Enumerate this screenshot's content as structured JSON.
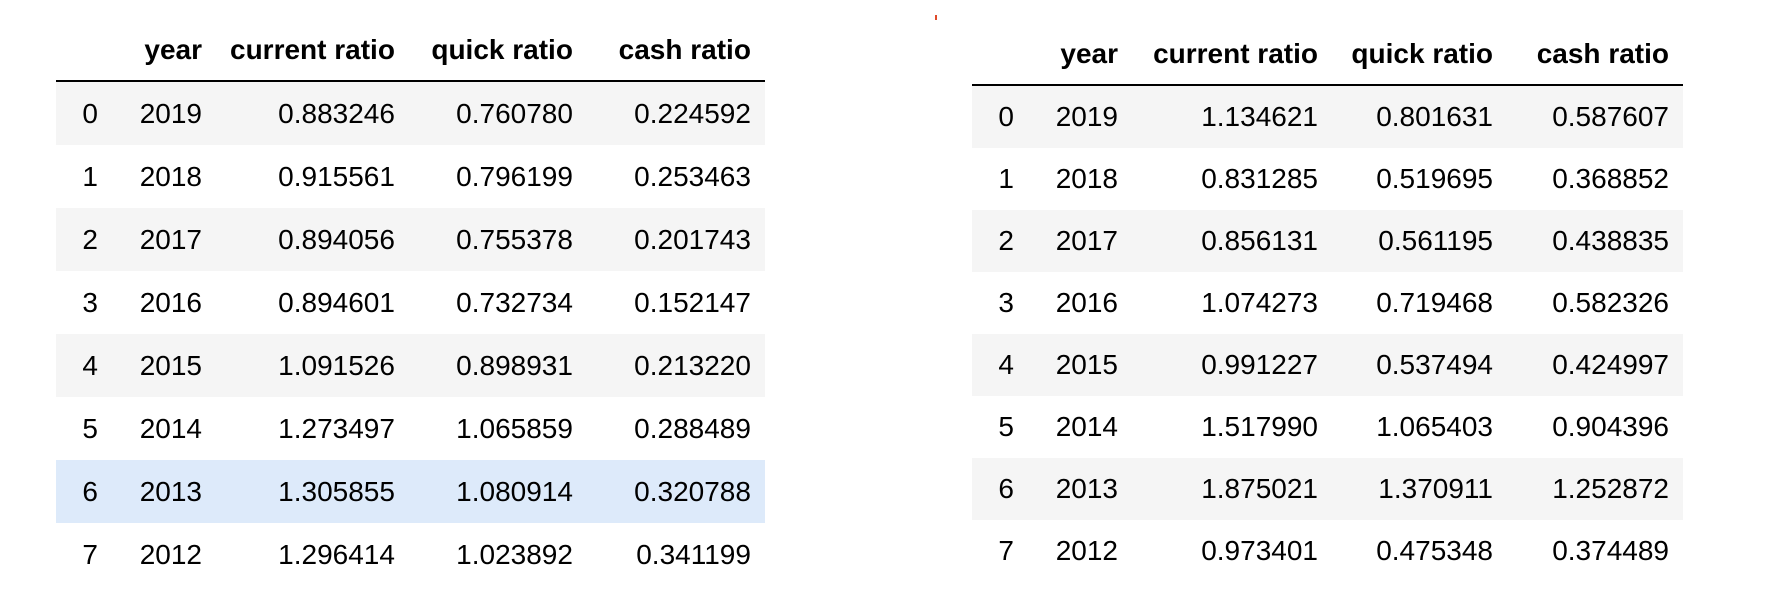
{
  "tables": [
    {
      "columns": [
        "",
        "year",
        "current ratio",
        "quick ratio",
        "cash ratio"
      ],
      "highlight_row": 6,
      "rows": [
        [
          "0",
          "2019",
          "0.883246",
          "0.760780",
          "0.224592"
        ],
        [
          "1",
          "2018",
          "0.915561",
          "0.796199",
          "0.253463"
        ],
        [
          "2",
          "2017",
          "0.894056",
          "0.755378",
          "0.201743"
        ],
        [
          "3",
          "2016",
          "0.894601",
          "0.732734",
          "0.152147"
        ],
        [
          "4",
          "2015",
          "1.091526",
          "0.898931",
          "0.213220"
        ],
        [
          "5",
          "2014",
          "1.273497",
          "1.065859",
          "0.288489"
        ],
        [
          "6",
          "2013",
          "1.305855",
          "1.080914",
          "0.320788"
        ],
        [
          "7",
          "2012",
          "1.296414",
          "1.023892",
          "0.341199"
        ]
      ]
    },
    {
      "columns": [
        "",
        "year",
        "current ratio",
        "quick ratio",
        "cash ratio"
      ],
      "highlight_row": null,
      "rows": [
        [
          "0",
          "2019",
          "1.134621",
          "0.801631",
          "0.587607"
        ],
        [
          "1",
          "2018",
          "0.831285",
          "0.519695",
          "0.368852"
        ],
        [
          "2",
          "2017",
          "0.856131",
          "0.561195",
          "0.438835"
        ],
        [
          "3",
          "2016",
          "1.074273",
          "0.719468",
          "0.582326"
        ],
        [
          "4",
          "2015",
          "0.991227",
          "0.537494",
          "0.424997"
        ],
        [
          "5",
          "2014",
          "1.517990",
          "1.065403",
          "0.904396"
        ],
        [
          "6",
          "2013",
          "1.875021",
          "1.370911",
          "1.252872"
        ],
        [
          "7",
          "2012",
          "0.973401",
          "0.475348",
          "0.374489"
        ]
      ]
    }
  ],
  "colors": {
    "row_stripe": "#f5f5f5",
    "row_hover": "#ddeafa",
    "header_border": "#000000"
  }
}
